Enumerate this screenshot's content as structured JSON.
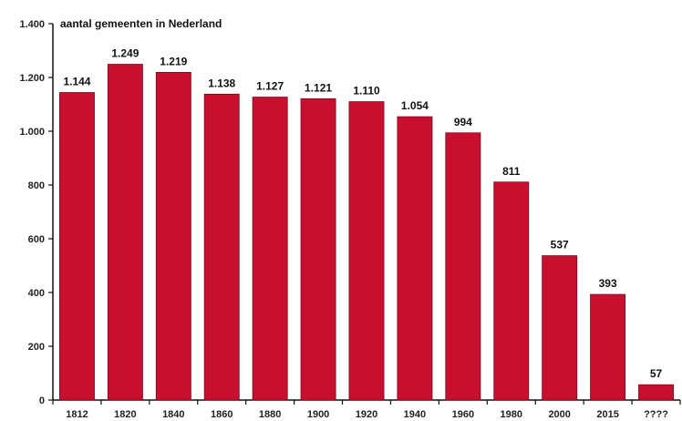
{
  "chart_data": {
    "type": "bar",
    "title": "aantal gemeenten in Nederland",
    "xlabel": "",
    "ylabel": "",
    "categories": [
      "1812",
      "1820",
      "1840",
      "1860",
      "1880",
      "1900",
      "1920",
      "1940",
      "1960",
      "1980",
      "2000",
      "2015",
      "????"
    ],
    "values": [
      1144,
      1249,
      1219,
      1138,
      1127,
      1121,
      1110,
      1054,
      994,
      811,
      537,
      393,
      57
    ],
    "data_labels": [
      "1.144",
      "1.249",
      "1.219",
      "1.138",
      "1.127",
      "1.121",
      "1.110",
      "1.054",
      "994",
      "811",
      "537",
      "393",
      "57"
    ],
    "ylim": [
      0,
      1400
    ],
    "yticks": [
      0,
      200,
      400,
      600,
      800,
      1000,
      1200,
      1400
    ],
    "ytick_labels": [
      "0",
      "200",
      "400",
      "600",
      "800",
      "1.000",
      "1.200",
      "1.400"
    ],
    "grid": false,
    "bar_color": "#c8102e"
  }
}
